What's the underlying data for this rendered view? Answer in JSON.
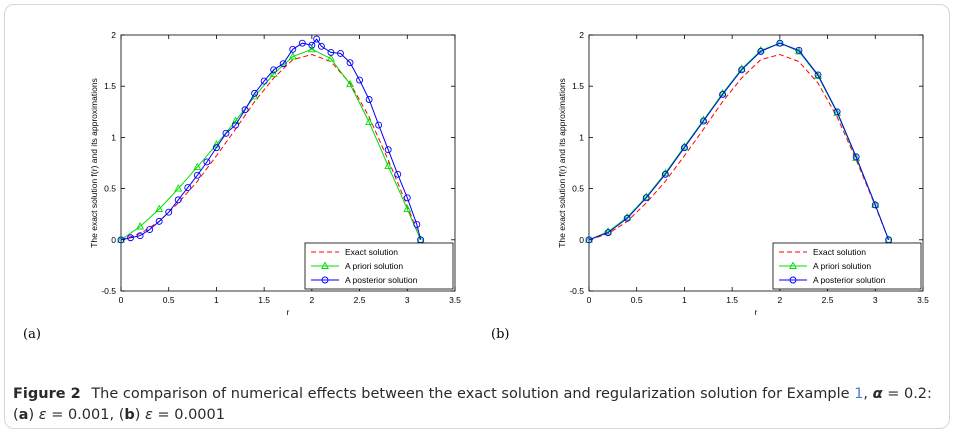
{
  "caption": {
    "figure_label": "Figure 2",
    "text_1": "The comparison of numerical effects between the exact solution and regularization solution for Example",
    "example_ref": "1",
    "text_2": ",",
    "alpha_symbol": "α",
    "alpha_value": "= 0.2: (",
    "panel_a": "a",
    "eps_a_symbol": "ε",
    "eps_a_value": "= 0.001, (",
    "panel_b": "b",
    "eps_b_symbol": "ε",
    "eps_b_value": "= 0.0001"
  },
  "panels": [
    {
      "label": "(a)"
    },
    {
      "label": "(b)"
    }
  ],
  "colors": {
    "exact": "#ff0000",
    "priori": "#00dd00",
    "posterior": "#0000ff"
  },
  "chart_data": [
    {
      "type": "line",
      "panel": "(a)",
      "xlabel": "r",
      "ylabel": "The exact solution f(r) and its approximations",
      "xlim": [
        0,
        3.5
      ],
      "ylim": [
        -0.5,
        2
      ],
      "xticks": [
        "0",
        "0.5",
        "1",
        "1.5",
        "2",
        "2.5",
        "3",
        "3.5"
      ],
      "yticks": [
        "-0.5",
        "0",
        "0.5",
        "1",
        "1.5",
        "2"
      ],
      "legend_position": "bottom-right",
      "series": [
        {
          "name": "Exact solution",
          "style": "dashed",
          "x": [
            0,
            0.2,
            0.4,
            0.6,
            0.8,
            1.0,
            1.2,
            1.4,
            1.6,
            1.8,
            2.0,
            2.2,
            2.4,
            2.6,
            2.8,
            3.0,
            3.14
          ],
          "y": [
            0,
            0.06,
            0.18,
            0.36,
            0.57,
            0.82,
            1.08,
            1.35,
            1.58,
            1.76,
            1.81,
            1.74,
            1.53,
            1.2,
            0.78,
            0.33,
            0
          ]
        },
        {
          "name": "A priori solution",
          "marker": "triangle",
          "x": [
            0,
            0.2,
            0.4,
            0.6,
            0.8,
            1.0,
            1.2,
            1.4,
            1.6,
            1.8,
            2.0,
            2.2,
            2.4,
            2.6,
            2.8,
            3.0,
            3.14
          ],
          "y": [
            0,
            0.13,
            0.3,
            0.5,
            0.71,
            0.93,
            1.16,
            1.4,
            1.62,
            1.79,
            1.86,
            1.77,
            1.52,
            1.15,
            0.72,
            0.3,
            0
          ]
        },
        {
          "name": "A posterior solution",
          "marker": "circle",
          "x": [
            0,
            0.1,
            0.2,
            0.3,
            0.4,
            0.5,
            0.6,
            0.7,
            0.8,
            0.9,
            1.0,
            1.1,
            1.2,
            1.3,
            1.4,
            1.5,
            1.6,
            1.7,
            1.8,
            1.9,
            2.0,
            2.05,
            2.1,
            2.2,
            2.3,
            2.4,
            2.5,
            2.6,
            2.7,
            2.8,
            2.9,
            3.0,
            3.1,
            3.14
          ],
          "y": [
            0,
            0.02,
            0.04,
            0.1,
            0.18,
            0.27,
            0.39,
            0.51,
            0.63,
            0.76,
            0.9,
            1.04,
            1.12,
            1.27,
            1.43,
            1.55,
            1.66,
            1.72,
            1.86,
            1.92,
            1.9,
            1.96,
            1.89,
            1.83,
            1.82,
            1.73,
            1.56,
            1.37,
            1.12,
            0.88,
            0.64,
            0.41,
            0.15,
            0
          ]
        }
      ]
    },
    {
      "type": "line",
      "panel": "(b)",
      "xlabel": "r",
      "ylabel": "The exact solution f(r) and its approximations",
      "xlim": [
        0,
        3.5
      ],
      "ylim": [
        -0.5,
        2
      ],
      "xticks": [
        "0",
        "0.5",
        "1",
        "1.5",
        "2",
        "2.5",
        "3",
        "3.5"
      ],
      "yticks": [
        "-0.5",
        "0",
        "0.5",
        "1",
        "1.5",
        "2"
      ],
      "legend_position": "bottom-right",
      "series": [
        {
          "name": "Exact solution",
          "style": "dashed",
          "x": [
            0,
            0.2,
            0.4,
            0.6,
            0.8,
            1.0,
            1.2,
            1.4,
            1.6,
            1.8,
            2.0,
            2.2,
            2.4,
            2.6,
            2.8,
            3.0,
            3.14
          ],
          "y": [
            0,
            0.06,
            0.18,
            0.36,
            0.57,
            0.82,
            1.08,
            1.35,
            1.58,
            1.76,
            1.81,
            1.74,
            1.53,
            1.2,
            0.78,
            0.33,
            0
          ]
        },
        {
          "name": "A priori solution",
          "marker": "triangle",
          "x": [
            0,
            0.2,
            0.4,
            0.6,
            0.8,
            1.0,
            1.2,
            1.4,
            1.6,
            1.8,
            2.0,
            2.2,
            2.4,
            2.6,
            2.8,
            3.0,
            3.14
          ],
          "y": [
            0,
            0.08,
            0.22,
            0.42,
            0.65,
            0.91,
            1.17,
            1.43,
            1.67,
            1.85,
            1.92,
            1.84,
            1.6,
            1.24,
            0.8,
            0.34,
            0
          ]
        },
        {
          "name": "A posterior solution",
          "marker": "circle",
          "x": [
            0,
            0.2,
            0.4,
            0.6,
            0.8,
            1.0,
            1.2,
            1.4,
            1.6,
            1.8,
            2.0,
            2.2,
            2.4,
            2.6,
            2.8,
            3.0,
            3.14
          ],
          "y": [
            0,
            0.07,
            0.21,
            0.41,
            0.64,
            0.9,
            1.16,
            1.42,
            1.66,
            1.84,
            1.92,
            1.85,
            1.61,
            1.25,
            0.81,
            0.34,
            0
          ]
        }
      ]
    }
  ]
}
